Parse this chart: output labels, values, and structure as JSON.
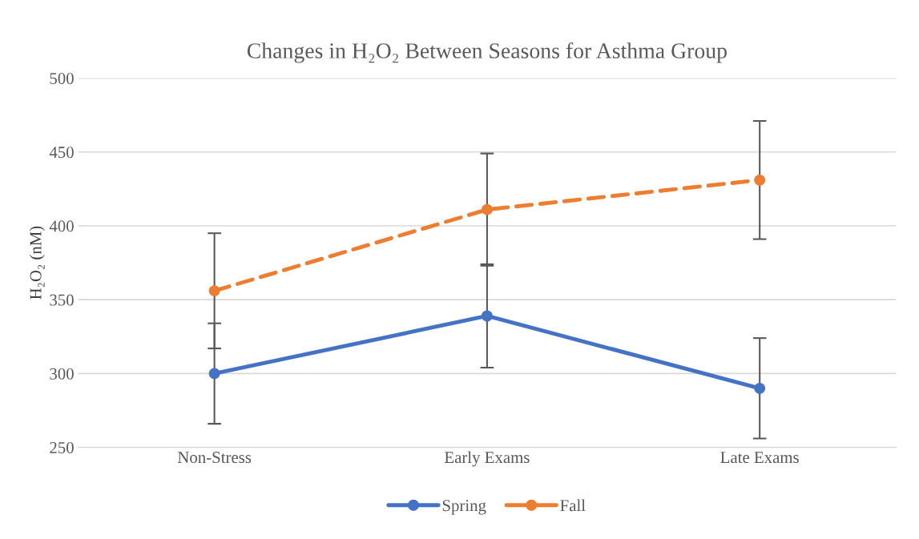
{
  "chart_data": {
    "type": "line",
    "title": "Changes in H₂O₂ Between Seasons for Asthma Group",
    "ylabel": "H₂O₂ (nM)",
    "categories": [
      "Non-Stress",
      "Early Exams",
      "Late Exams"
    ],
    "series": [
      {
        "name": "Spring",
        "color": "#4472c4",
        "values": [
          300,
          339,
          290
        ],
        "errors": [
          34,
          35,
          34
        ],
        "line_style": "solid"
      },
      {
        "name": "Fall",
        "color": "#ed7d31",
        "values": [
          356,
          411,
          431
        ],
        "errors": [
          39,
          38,
          40
        ],
        "line_style": "dashed"
      }
    ],
    "ylim": [
      250,
      500
    ],
    "yticks": [
      250,
      300,
      350,
      400,
      450,
      500
    ],
    "grid": "y",
    "legend": "bottom",
    "marker": "circle"
  }
}
